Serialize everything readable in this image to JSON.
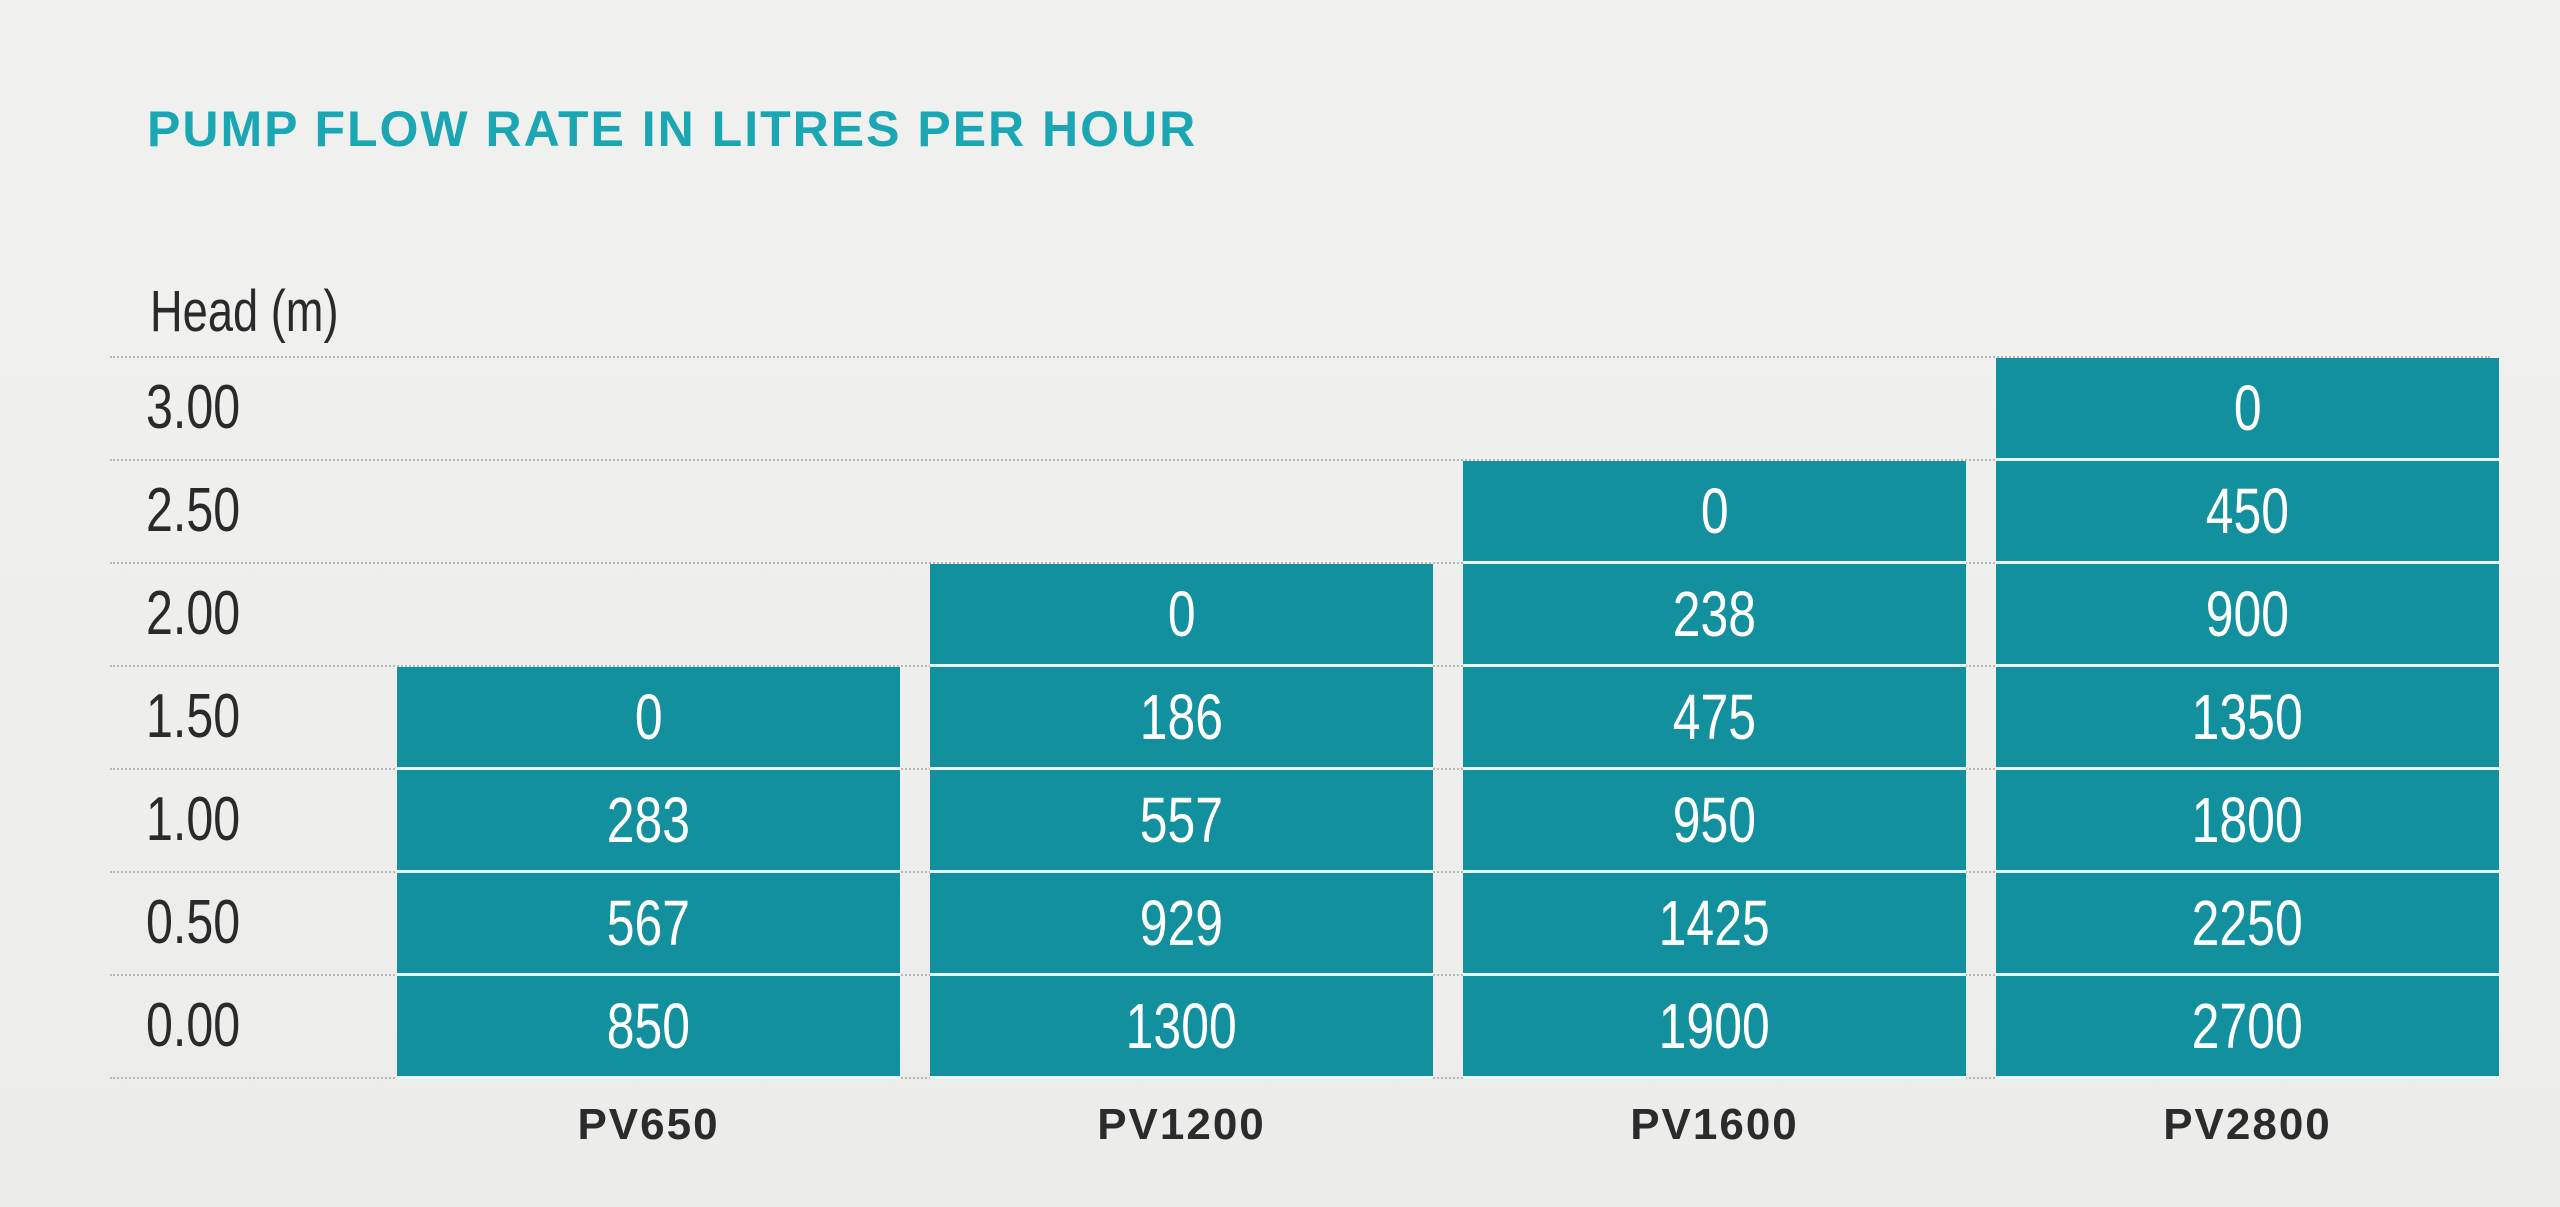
{
  "title": "PUMP FLOW RATE IN LITRES PER HOUR",
  "table": {
    "row_header": "Head (m)",
    "heads": [
      "3.00",
      "2.50",
      "2.00",
      "1.50",
      "1.00",
      "0.50",
      "0.00"
    ],
    "pumps": [
      {
        "name": "PV650",
        "values": [
          0,
          283,
          567,
          850
        ]
      },
      {
        "name": "PV1200",
        "values": [
          0,
          186,
          557,
          929,
          1300
        ]
      },
      {
        "name": "PV1600",
        "values": [
          0,
          238,
          475,
          950,
          1425,
          1900
        ]
      },
      {
        "name": "PV2800",
        "values": [
          0,
          450,
          900,
          1350,
          1800,
          2250,
          2700
        ]
      }
    ]
  }
}
